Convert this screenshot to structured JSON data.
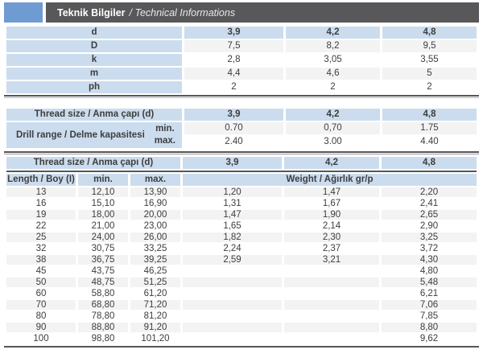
{
  "header": {
    "title_bold": "Teknik Bilgiler",
    "title_italic": "/ Technical Informations"
  },
  "colors": {
    "accent_blue_square": "#6f9bd3",
    "header_bar": "#58585a",
    "cell_blue": "#cbdcee",
    "row_stripe": "#f3f3f3",
    "rule": "#55565a"
  },
  "dimensions_table": {
    "rows": [
      {
        "label": "d",
        "values": [
          "3,9",
          "4,2",
          "4,8"
        ]
      },
      {
        "label": "D",
        "values": [
          "7,5",
          "8,2",
          "9,5"
        ]
      },
      {
        "label": "k",
        "values": [
          "2,8",
          "3,05",
          "3,55"
        ]
      },
      {
        "label": "m",
        "values": [
          "4,4",
          "4,6",
          "5"
        ]
      },
      {
        "label": "ph",
        "values": [
          "2",
          "2",
          "2"
        ]
      }
    ]
  },
  "drill_table": {
    "thread_size_label": "Thread size / Anma çapı (d)",
    "thread_sizes": [
      "3,9",
      "4,2",
      "4,8"
    ],
    "drill_range_label": "Drill range / Delme kapasitesi",
    "min_label": "min.",
    "max_label": "max.",
    "min_values": [
      "0.70",
      "0,70",
      "1.75"
    ],
    "max_values": [
      "2.40",
      "3.00",
      "4.40"
    ]
  },
  "weight_table": {
    "thread_size_label": "Thread size / Anma çapı (d)",
    "thread_sizes": [
      "3,9",
      "4,2",
      "4,8"
    ],
    "length_label": "Length / Boy (I)",
    "min_label": "min.",
    "max_label": "max.",
    "weight_label": "Weight / Ağırlık gr/p",
    "rows": [
      {
        "length": "13",
        "min": "12,10",
        "max": "13,90",
        "weights": [
          "1,20",
          "1,47",
          "2,20"
        ]
      },
      {
        "length": "16",
        "min": "15,10",
        "max": "16,90",
        "weights": [
          "1,31",
          "1,67",
          "2,41"
        ]
      },
      {
        "length": "19",
        "min": "18,00",
        "max": "20,00",
        "weights": [
          "1,47",
          "1,90",
          "2,65"
        ]
      },
      {
        "length": "22",
        "min": "21,00",
        "max": "23,00",
        "weights": [
          "1,65",
          "2,14",
          "2,90"
        ]
      },
      {
        "length": "25",
        "min": "24,00",
        "max": "26,00",
        "weights": [
          "1,82",
          "2,30",
          "3,25"
        ]
      },
      {
        "length": "32",
        "min": "30,75",
        "max": "33,25",
        "weights": [
          "2,24",
          "2,37",
          "3,72"
        ]
      },
      {
        "length": "38",
        "min": "36,75",
        "max": "39,25",
        "weights": [
          "2,59",
          "3,21",
          "4,30"
        ]
      },
      {
        "length": "45",
        "min": "43,75",
        "max": "46,25",
        "weights": [
          "",
          "",
          "4,80"
        ]
      },
      {
        "length": "50",
        "min": "48,75",
        "max": "51,25",
        "weights": [
          "",
          "",
          "5,48"
        ]
      },
      {
        "length": "60",
        "min": "58,80",
        "max": "61,20",
        "weights": [
          "",
          "",
          "6,21"
        ]
      },
      {
        "length": "70",
        "min": "68,80",
        "max": "71,20",
        "weights": [
          "",
          "",
          "7,06"
        ]
      },
      {
        "length": "80",
        "min": "78,80",
        "max": "81,20",
        "weights": [
          "",
          "",
          "7,85"
        ]
      },
      {
        "length": "90",
        "min": "88,80",
        "max": "91,20",
        "weights": [
          "",
          "",
          "8,80"
        ]
      },
      {
        "length": "100",
        "min": "98,80",
        "max": "101,20",
        "weights": [
          "",
          "",
          "9,62"
        ]
      }
    ]
  }
}
